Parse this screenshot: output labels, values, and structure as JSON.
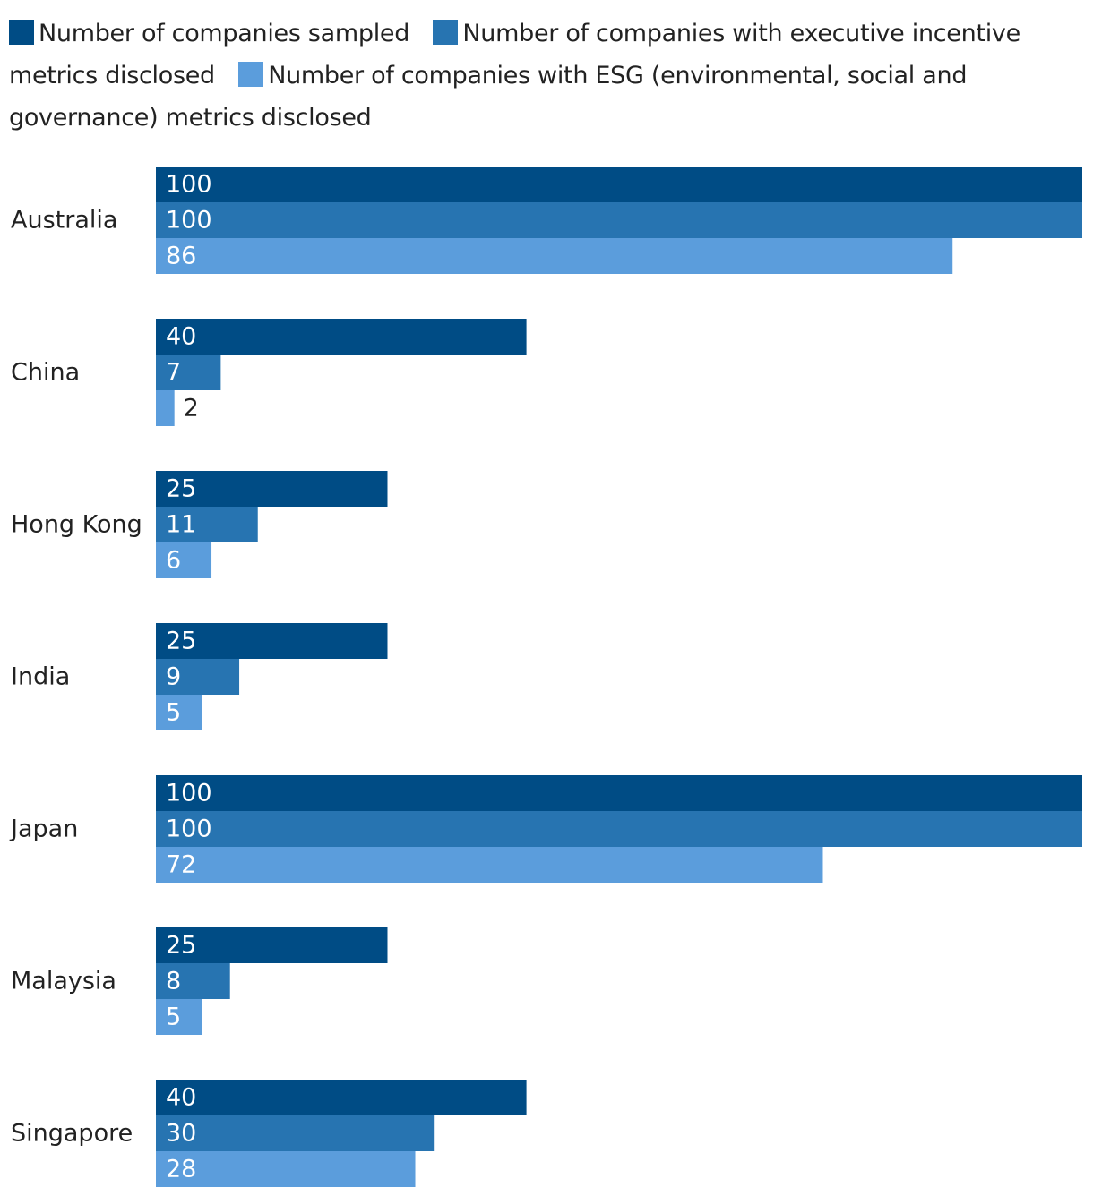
{
  "chart_data": {
    "type": "bar",
    "orientation": "horizontal",
    "categories": [
      "Australia",
      "China",
      "Hong Kong",
      "India",
      "Japan",
      "Malaysia",
      "Singapore"
    ],
    "series": [
      {
        "name": "Number of companies sampled",
        "color": "#004c85",
        "values": [
          100,
          40,
          25,
          25,
          100,
          25,
          40
        ]
      },
      {
        "name": "Number of companies with executive incentive metrics disclosed",
        "color": "#2774b1",
        "values": [
          100,
          7,
          11,
          9,
          100,
          8,
          30
        ]
      },
      {
        "name": "Number of companies with ESG (environmental, social and governance) metrics disclosed",
        "color": "#5b9ddc",
        "values": [
          86,
          2,
          6,
          5,
          72,
          5,
          28
        ]
      }
    ],
    "xlim": [
      0,
      100
    ],
    "legend_position": "top",
    "grid": false
  }
}
